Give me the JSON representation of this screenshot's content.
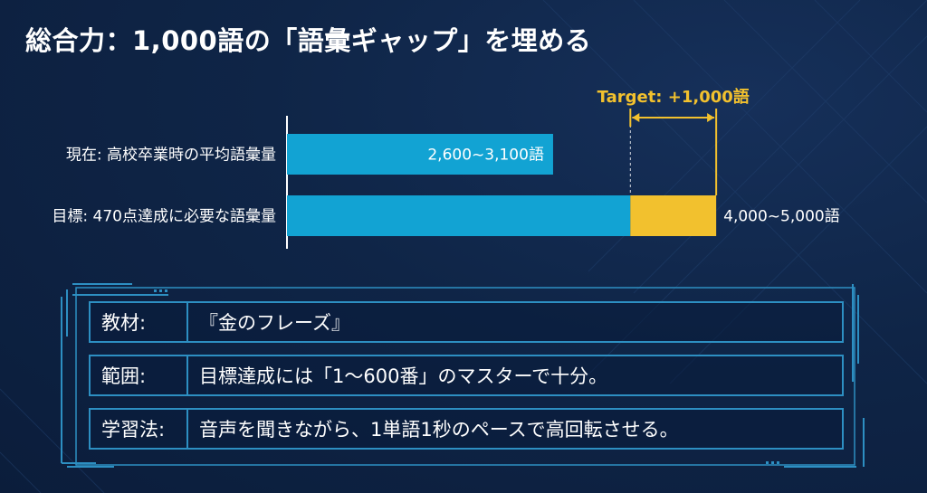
{
  "title": "総合力：1,000語の「語彙ギャップ」を埋める",
  "chart_data": {
    "type": "bar",
    "orientation": "horizontal",
    "stacked": true,
    "xlim": [
      0,
      5800
    ],
    "categories": [
      "現在: 高校卒業時の平均語彙量",
      "目標: 470点達成に必要な語彙量"
    ],
    "series": [
      {
        "values": [
          3100,
          4000
        ],
        "color": "#12a3d3"
      },
      {
        "values": [
          0,
          1000
        ],
        "color": "#f2c12e"
      }
    ],
    "bar_labels": [
      "2,600~3,100語",
      "4,000~5,000語"
    ],
    "annotation": "Target: +1,000語",
    "annotation_range": [
      4000,
      5000
    ],
    "annotation_color": "#f2c12e"
  },
  "info_table": [
    {
      "key": "教材:",
      "value": "『金のフレーズ』"
    },
    {
      "key": "範囲:",
      "value": "目標達成には「1～600番」のマスターで十分。"
    },
    {
      "key": "学習法:",
      "value": "音声を聞きながら、1単語1秒のペースで高回転させる。"
    }
  ]
}
